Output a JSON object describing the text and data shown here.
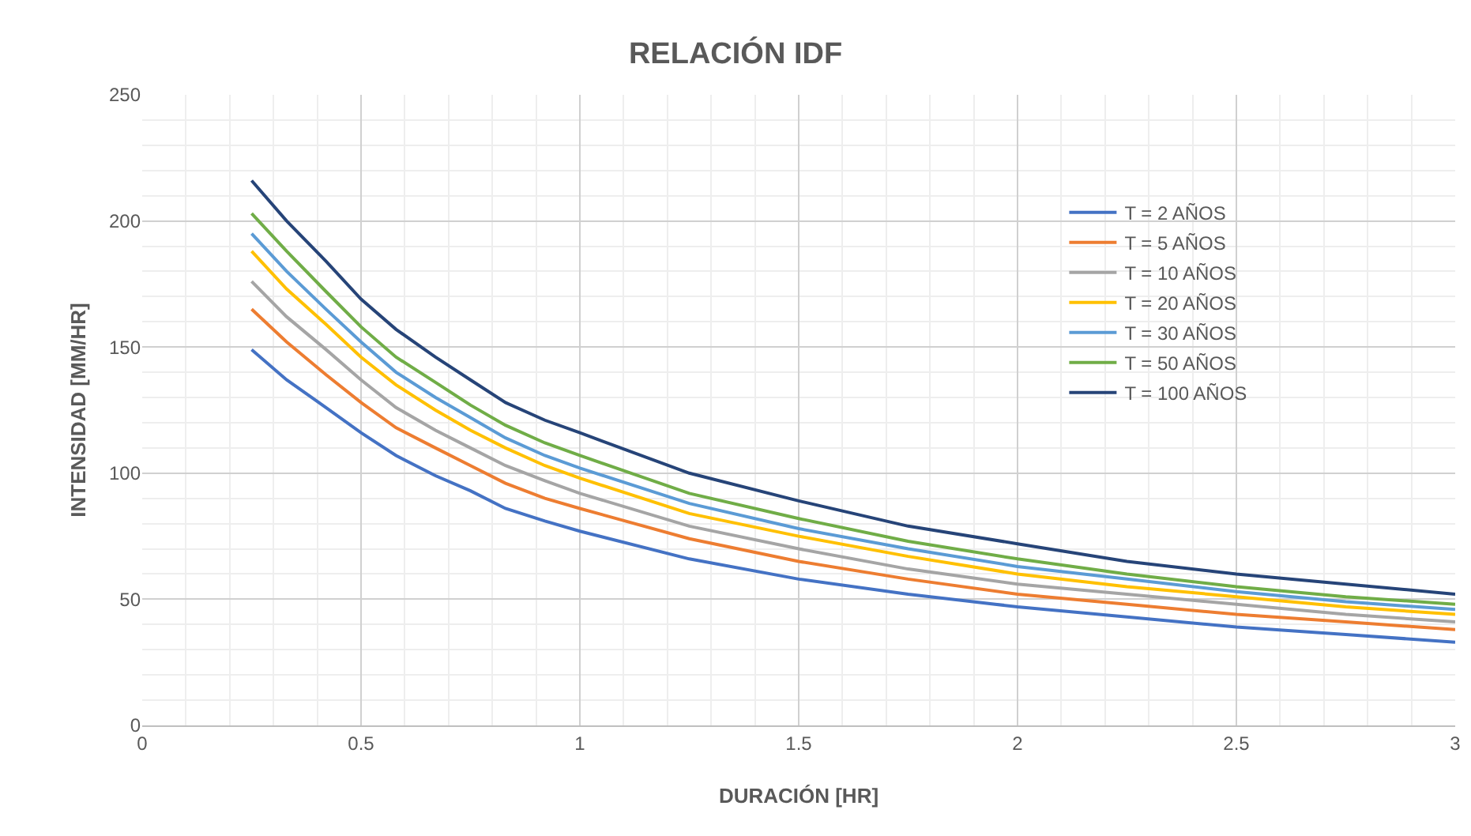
{
  "chart_data": {
    "type": "line",
    "title": "RELACIÓN IDF",
    "xlabel": "DURACIÓN [HR]",
    "ylabel": "INTENSIDAD [MM/HR]",
    "x": [
      0.25,
      0.33,
      0.42,
      0.5,
      0.58,
      0.67,
      0.75,
      0.83,
      0.92,
      1,
      1.25,
      1.5,
      1.75,
      2,
      2.25,
      2.5,
      2.75,
      3
    ],
    "series": [
      {
        "name": "T = 2 AÑOS",
        "color": "#4472c4",
        "values": [
          149,
          137,
          126,
          116,
          107,
          99,
          93,
          86,
          81,
          77,
          66,
          58,
          52,
          47,
          43,
          39,
          36,
          33
        ]
      },
      {
        "name": "T = 5 AÑOS",
        "color": "#ed7d31",
        "values": [
          165,
          152,
          139,
          128,
          118,
          110,
          103,
          96,
          90,
          86,
          74,
          65,
          58,
          52,
          48,
          44,
          41,
          38
        ]
      },
      {
        "name": "T = 10 AÑOS",
        "color": "#a5a5a5",
        "values": [
          176,
          162,
          149,
          137,
          126,
          117,
          110,
          103,
          97,
          92,
          79,
          70,
          62,
          56,
          52,
          48,
          44,
          41
        ]
      },
      {
        "name": "T = 20 AÑOS",
        "color": "#ffc000",
        "values": [
          188,
          173,
          159,
          146,
          135,
          125,
          117,
          110,
          103,
          98,
          84,
          75,
          67,
          60,
          55,
          51,
          47,
          44
        ]
      },
      {
        "name": "T = 30 AÑOS",
        "color": "#5b9bd5",
        "values": [
          195,
          180,
          165,
          152,
          140,
          130,
          122,
          114,
          107,
          102,
          88,
          78,
          70,
          63,
          58,
          53,
          49,
          46
        ]
      },
      {
        "name": "T = 50 AÑOS",
        "color": "#70ad47",
        "values": [
          203,
          188,
          172,
          158,
          146,
          136,
          127,
          119,
          112,
          107,
          92,
          82,
          73,
          66,
          60,
          55,
          51,
          48
        ]
      },
      {
        "name": "T = 100 AÑOS",
        "color": "#264478",
        "values": [
          216,
          200,
          184,
          169,
          157,
          146,
          137,
          128,
          121,
          116,
          100,
          89,
          79,
          72,
          65,
          60,
          56,
          52
        ]
      }
    ],
    "xlim": [
      0,
      3
    ],
    "xticks": [
      0,
      0.5,
      1,
      1.5,
      2,
      2.5,
      3
    ],
    "ylim": [
      0,
      250
    ],
    "yticks": [
      0,
      50,
      100,
      150,
      200,
      250
    ],
    "grid": true,
    "legend": "top right",
    "marker": "none",
    "line_style": "solid"
  }
}
